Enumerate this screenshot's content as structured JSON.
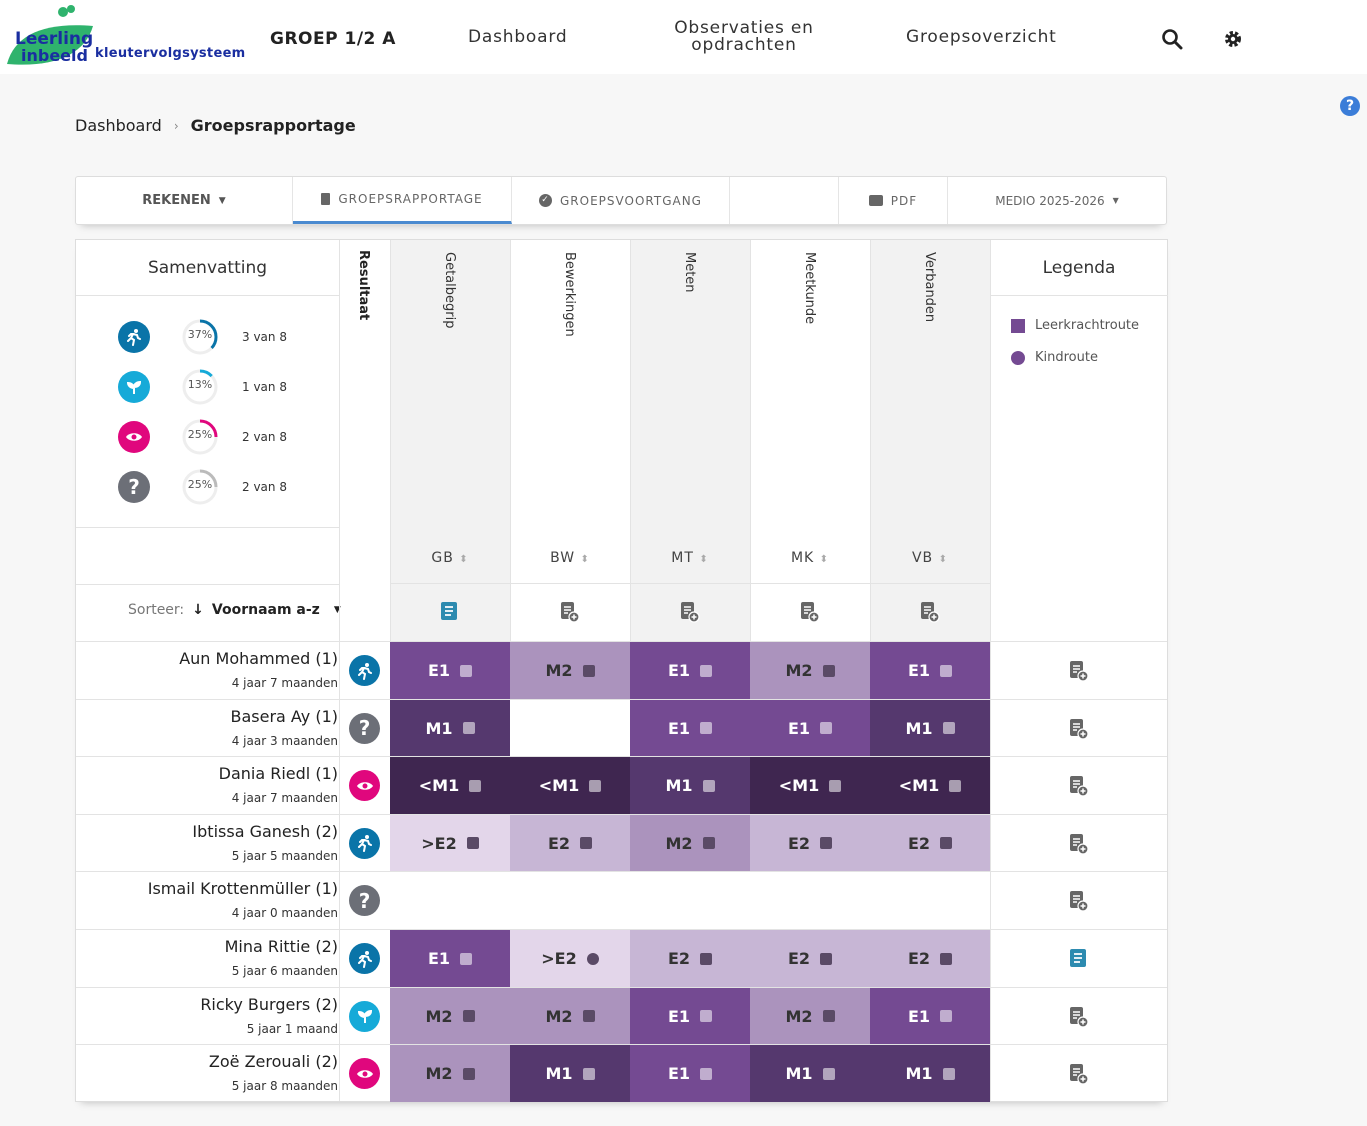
{
  "header": {
    "logo_text": "Leerling in beeld",
    "logo_sub": "kleutervolgsysteem",
    "group": "GROEP 1/2 A",
    "nav": [
      "Dashboard",
      "Observaties en opdrachten",
      "Groepsoverzicht"
    ]
  },
  "breadcrumb": {
    "parent": "Dashboard",
    "current": "Groepsrapportage"
  },
  "tabs": {
    "subject": "REKENEN",
    "rapportage": "GROEPSRAPPORTAGE",
    "voortgang": "GROEPSVOORTGANG",
    "pdf": "PDF",
    "period": "MEDIO 2025-2026"
  },
  "summary": {
    "title": "Samenvatting",
    "rows": [
      {
        "icon": "running-icon",
        "color": "#0a74a8",
        "percent": 37,
        "label": "37%",
        "count": "3 van 8"
      },
      {
        "icon": "sprout-icon",
        "color": "#16aad8",
        "percent": 13,
        "label": "13%",
        "count": "1 van 8"
      },
      {
        "icon": "eye-icon",
        "color": "#e0077d",
        "percent": 25,
        "label": "25%",
        "count": "2 van 8"
      },
      {
        "icon": "question-icon",
        "color": "#6c6f77",
        "percent": 25,
        "label": "25%",
        "count": "2 van 8"
      }
    ]
  },
  "sort": {
    "label": "Sorteer:",
    "value": "Voornaam a-z"
  },
  "result_header": "Resultaat",
  "columns": [
    {
      "name": "Getalbegrip",
      "abbr": "GB",
      "note": "filled"
    },
    {
      "name": "Bewerkingen",
      "abbr": "BW",
      "note": "add"
    },
    {
      "name": "Meten",
      "abbr": "MT",
      "note": "add"
    },
    {
      "name": "Meetkunde",
      "abbr": "MK",
      "note": "add"
    },
    {
      "name": "Verbanden",
      "abbr": "VB",
      "note": "add"
    }
  ],
  "legend": {
    "title": "Legenda",
    "items": [
      {
        "label": "Leerkrachtroute",
        "shape": "square"
      },
      {
        "label": "Kindroute",
        "shape": "circle"
      }
    ]
  },
  "levels": {
    "<M1": "#3f2650",
    "M1": "#55386e",
    "E1": "#744a92",
    "M2": "#ab93bd",
    "E2": "#c7b6d5",
    ">E2": "#e3d6ea"
  },
  "students": [
    {
      "name": "Aun Mohammed (1)",
      "age": "4 jaar 7 maanden",
      "status": "running-icon",
      "note": "add",
      "scores": [
        "E1",
        "M2",
        "E1",
        "M2",
        "E1"
      ],
      "markers": [
        "square",
        "square",
        "square",
        "square",
        "square"
      ]
    },
    {
      "name": "Basera Ay (1)",
      "age": "4 jaar 3 maanden",
      "status": "question-icon",
      "note": "add",
      "scores": [
        "M1",
        "",
        "E1",
        "E1",
        "M1"
      ],
      "markers": [
        "square",
        "",
        "square",
        "square",
        "square"
      ]
    },
    {
      "name": "Dania Riedl (1)",
      "age": "4 jaar 7 maanden",
      "status": "eye-icon",
      "note": "add",
      "scores": [
        "<M1",
        "<M1",
        "M1",
        "<M1",
        "<M1"
      ],
      "markers": [
        "square",
        "square",
        "square",
        "square",
        "square"
      ]
    },
    {
      "name": "Ibtissa Ganesh (2)",
      "age": "5 jaar 5 maanden",
      "status": "running-icon",
      "note": "add",
      "scores": [
        ">E2",
        "E2",
        "M2",
        "E2",
        "E2"
      ],
      "markers": [
        "square",
        "square",
        "square",
        "square",
        "square"
      ]
    },
    {
      "name": "Ismail Krottenmüller (1)",
      "age": "4 jaar 0 maanden",
      "status": "question-icon",
      "note": "add",
      "scores": [
        "",
        "",
        "",
        "",
        ""
      ],
      "markers": [
        "",
        "",
        "",
        "",
        ""
      ]
    },
    {
      "name": "Mina Rittie (2)",
      "age": "5 jaar 6 maanden",
      "status": "running-icon",
      "note": "filled",
      "scores": [
        "E1",
        ">E2",
        "E2",
        "E2",
        "E2"
      ],
      "markers": [
        "square",
        "circle",
        "square",
        "square",
        "square"
      ]
    },
    {
      "name": "Ricky Burgers (2)",
      "age": "5 jaar 1 maand",
      "status": "sprout-icon",
      "note": "add",
      "scores": [
        "M2",
        "M2",
        "E1",
        "M2",
        "E1"
      ],
      "markers": [
        "square",
        "square",
        "square",
        "square",
        "square"
      ]
    },
    {
      "name": "Zoë Zerouali (2)",
      "age": "5 jaar 8 maanden",
      "status": "eye-icon",
      "note": "add",
      "scores": [
        "M2",
        "M1",
        "E1",
        "M1",
        "M1"
      ],
      "markers": [
        "square",
        "square",
        "square",
        "square",
        "square"
      ]
    }
  ]
}
